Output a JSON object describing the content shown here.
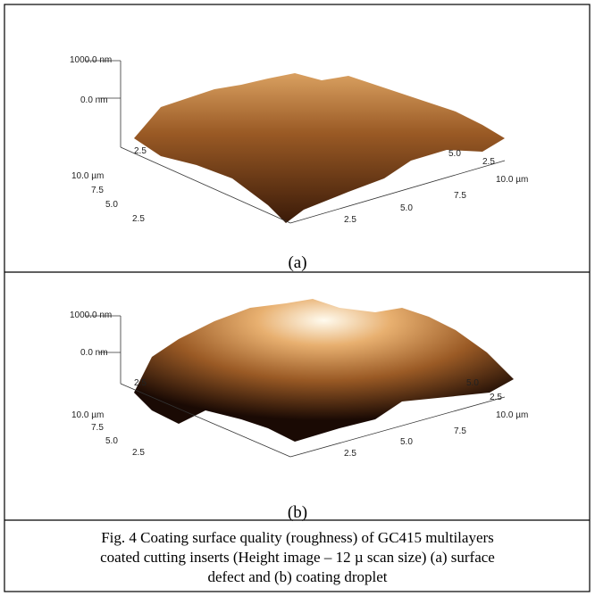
{
  "panels": [
    {
      "label": "(a)",
      "z_axis": [
        "1000.0 nm",
        "0.0 nm"
      ],
      "y_axis": [
        "10.0 µm",
        "7.5",
        "5.0",
        "2.5"
      ],
      "x_axis": [
        "2.5",
        "5.0",
        "7.5",
        "10.0 µm"
      ],
      "back_left": [
        "2.5"
      ],
      "back_right": [
        "5.0",
        "2.5"
      ]
    },
    {
      "label": "(b)",
      "z_axis": [
        "1000.0 nm",
        "0.0 nm"
      ],
      "y_axis": [
        "10.0 µm",
        "7.5",
        "5.0",
        "2.5"
      ],
      "x_axis": [
        "2.5",
        "5.0",
        "7.5",
        "10.0 µm"
      ],
      "back_left": [
        "2.5"
      ],
      "back_right": [
        "5.0",
        "2.5"
      ]
    }
  ],
  "caption": [
    "Fig. 4 Coating surface quality (roughness) of GC415 multilayers",
    "coated cutting inserts (Height image – 12 µ scan size) (a) surface",
    "defect and (b) coating droplet"
  ]
}
